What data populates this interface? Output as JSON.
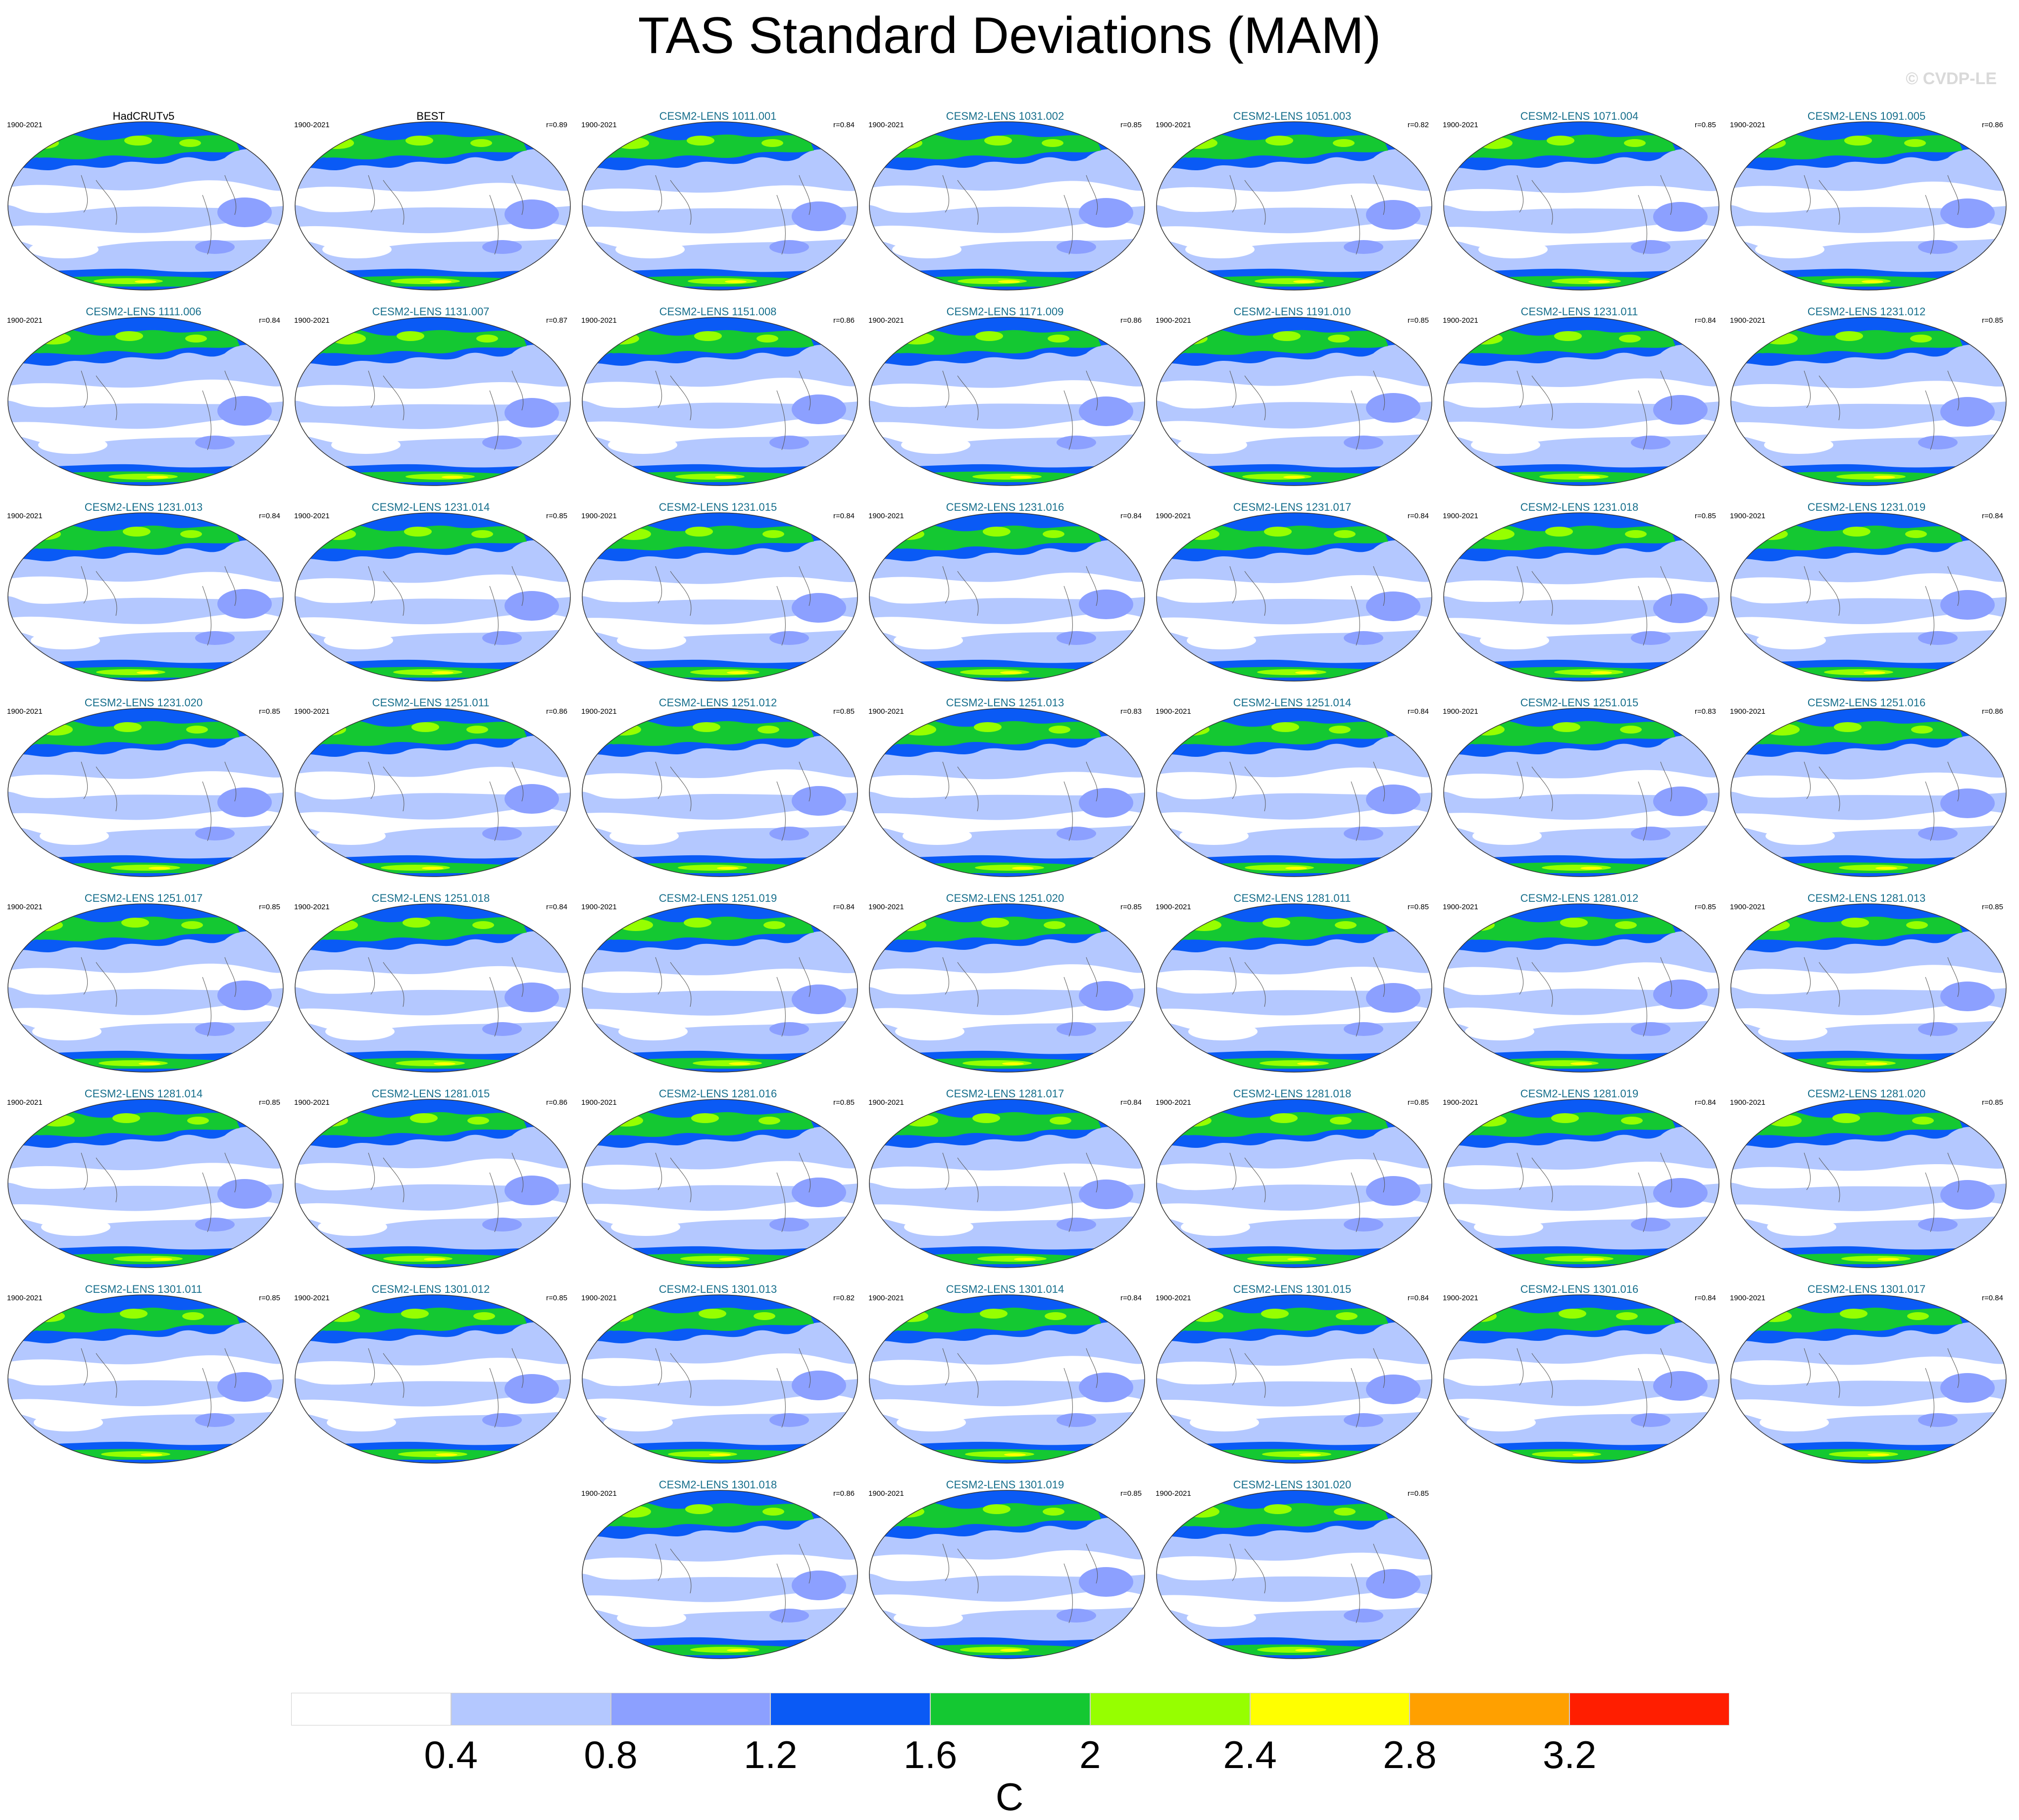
{
  "title": "TAS Standard Deviations (MAM)",
  "watermark": "© CVDP-LE",
  "panels": [
    {
      "name": "HadCRUTv5",
      "period": "1900-2021",
      "r": "",
      "obs": true
    },
    {
      "name": "BEST",
      "period": "1900-2021",
      "r": "r=0.89",
      "obs": true
    },
    {
      "name": "CESM2-LENS 1011.001",
      "period": "1900-2021",
      "r": "r=0.84"
    },
    {
      "name": "CESM2-LENS 1031.002",
      "period": "1900-2021",
      "r": "r=0.85"
    },
    {
      "name": "CESM2-LENS 1051.003",
      "period": "1900-2021",
      "r": "r=0.82"
    },
    {
      "name": "CESM2-LENS 1071.004",
      "period": "1900-2021",
      "r": "r=0.85"
    },
    {
      "name": "CESM2-LENS 1091.005",
      "period": "1900-2021",
      "r": "r=0.86"
    },
    {
      "name": "CESM2-LENS 1111.006",
      "period": "1900-2021",
      "r": "r=0.84"
    },
    {
      "name": "CESM2-LENS 1131.007",
      "period": "1900-2021",
      "r": "r=0.87"
    },
    {
      "name": "CESM2-LENS 1151.008",
      "period": "1900-2021",
      "r": "r=0.86"
    },
    {
      "name": "CESM2-LENS 1171.009",
      "period": "1900-2021",
      "r": "r=0.86"
    },
    {
      "name": "CESM2-LENS 1191.010",
      "period": "1900-2021",
      "r": "r=0.85"
    },
    {
      "name": "CESM2-LENS 1231.011",
      "period": "1900-2021",
      "r": "r=0.84"
    },
    {
      "name": "CESM2-LENS 1231.012",
      "period": "1900-2021",
      "r": "r=0.85"
    },
    {
      "name": "CESM2-LENS 1231.013",
      "period": "1900-2021",
      "r": "r=0.84"
    },
    {
      "name": "CESM2-LENS 1231.014",
      "period": "1900-2021",
      "r": "r=0.85"
    },
    {
      "name": "CESM2-LENS 1231.015",
      "period": "1900-2021",
      "r": "r=0.84"
    },
    {
      "name": "CESM2-LENS 1231.016",
      "period": "1900-2021",
      "r": "r=0.84"
    },
    {
      "name": "CESM2-LENS 1231.017",
      "period": "1900-2021",
      "r": "r=0.84"
    },
    {
      "name": "CESM2-LENS 1231.018",
      "period": "1900-2021",
      "r": "r=0.85"
    },
    {
      "name": "CESM2-LENS 1231.019",
      "period": "1900-2021",
      "r": "r=0.84"
    },
    {
      "name": "CESM2-LENS 1231.020",
      "period": "1900-2021",
      "r": "r=0.85"
    },
    {
      "name": "CESM2-LENS 1251.011",
      "period": "1900-2021",
      "r": "r=0.86"
    },
    {
      "name": "CESM2-LENS 1251.012",
      "period": "1900-2021",
      "r": "r=0.85"
    },
    {
      "name": "CESM2-LENS 1251.013",
      "period": "1900-2021",
      "r": "r=0.83"
    },
    {
      "name": "CESM2-LENS 1251.014",
      "period": "1900-2021",
      "r": "r=0.84"
    },
    {
      "name": "CESM2-LENS 1251.015",
      "period": "1900-2021",
      "r": "r=0.83"
    },
    {
      "name": "CESM2-LENS 1251.016",
      "period": "1900-2021",
      "r": "r=0.86"
    },
    {
      "name": "CESM2-LENS 1251.017",
      "period": "1900-2021",
      "r": "r=0.85"
    },
    {
      "name": "CESM2-LENS 1251.018",
      "period": "1900-2021",
      "r": "r=0.84"
    },
    {
      "name": "CESM2-LENS 1251.019",
      "period": "1900-2021",
      "r": "r=0.84"
    },
    {
      "name": "CESM2-LENS 1251.020",
      "period": "1900-2021",
      "r": "r=0.85"
    },
    {
      "name": "CESM2-LENS 1281.011",
      "period": "1900-2021",
      "r": "r=0.85"
    },
    {
      "name": "CESM2-LENS 1281.012",
      "period": "1900-2021",
      "r": "r=0.85"
    },
    {
      "name": "CESM2-LENS 1281.013",
      "period": "1900-2021",
      "r": "r=0.85"
    },
    {
      "name": "CESM2-LENS 1281.014",
      "period": "1900-2021",
      "r": "r=0.85"
    },
    {
      "name": "CESM2-LENS 1281.015",
      "period": "1900-2021",
      "r": "r=0.86"
    },
    {
      "name": "CESM2-LENS 1281.016",
      "period": "1900-2021",
      "r": "r=0.85"
    },
    {
      "name": "CESM2-LENS 1281.017",
      "period": "1900-2021",
      "r": "r=0.84"
    },
    {
      "name": "CESM2-LENS 1281.018",
      "period": "1900-2021",
      "r": "r=0.85"
    },
    {
      "name": "CESM2-LENS 1281.019",
      "period": "1900-2021",
      "r": "r=0.84"
    },
    {
      "name": "CESM2-LENS 1281.020",
      "period": "1900-2021",
      "r": "r=0.85"
    },
    {
      "name": "CESM2-LENS 1301.011",
      "period": "1900-2021",
      "r": "r=0.85"
    },
    {
      "name": "CESM2-LENS 1301.012",
      "period": "1900-2021",
      "r": "r=0.85"
    },
    {
      "name": "CESM2-LENS 1301.013",
      "period": "1900-2021",
      "r": "r=0.82"
    },
    {
      "name": "CESM2-LENS 1301.014",
      "period": "1900-2021",
      "r": "r=0.84"
    },
    {
      "name": "CESM2-LENS 1301.015",
      "period": "1900-2021",
      "r": "r=0.84"
    },
    {
      "name": "CESM2-LENS 1301.016",
      "period": "1900-2021",
      "r": "r=0.84"
    },
    {
      "name": "CESM2-LENS 1301.017",
      "period": "1900-2021",
      "r": "r=0.84"
    },
    {
      "name": "CESM2-LENS 1301.018",
      "period": "1900-2021",
      "r": "r=0.86"
    },
    {
      "name": "CESM2-LENS 1301.019",
      "period": "1900-2021",
      "r": "r=0.85"
    },
    {
      "name": "CESM2-LENS 1301.020",
      "period": "1900-2021",
      "r": "r=0.85"
    }
  ],
  "colorbar": {
    "units": "C",
    "tick_labels": [
      "0.4",
      "0.8",
      "1.2",
      "1.6",
      "2",
      "2.4",
      "2.8",
      "3.2"
    ],
    "colors": [
      "#ffffff",
      "#b4c8ff",
      "#8ca0ff",
      "#0a5af5",
      "#14c832",
      "#96ff00",
      "#ffff00",
      "#ffa000",
      "#ff1e00"
    ]
  },
  "map_colors": {
    "ocean_low": "#ffffff",
    "weak": "#b4c8ff",
    "mid": "#8ca0ff",
    "strong": "#0a5af5",
    "land_high": "#14c832",
    "very_high": "#96ff00",
    "peak": "#ffff00",
    "extreme": "#ffa000",
    "max": "#ff1e00",
    "coast": "#555555"
  }
}
